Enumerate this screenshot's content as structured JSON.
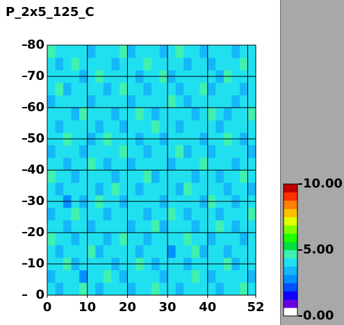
{
  "chart_data": {
    "type": "heatmap",
    "title": "P_2x5_125_C",
    "xlim": [
      0,
      52
    ],
    "ylim": [
      0,
      80
    ],
    "xticks": [
      0,
      10,
      20,
      30,
      40,
      52
    ],
    "yticks": [
      0,
      10,
      20,
      30,
      40,
      50,
      60,
      70,
      80
    ],
    "xgrid": [
      10,
      20,
      30,
      40,
      50
    ],
    "ygrid": [
      10,
      20,
      30,
      40,
      50,
      60,
      70
    ],
    "grid": true,
    "zlim": [
      0,
      10
    ],
    "zticks": [
      {
        "value": 0,
        "label": "0.00"
      },
      {
        "value": 5,
        "label": "5.00"
      },
      {
        "value": 10,
        "label": "10.00"
      }
    ],
    "colorscale": [
      "#ffffff",
      "#6a00e0",
      "#1000ff",
      "#0050ff",
      "#0090ff",
      "#14b8f8",
      "#20e0f0",
      "#40f0b0",
      "#00e040",
      "#20ff00",
      "#80ff00",
      "#e0ff00",
      "#ffc000",
      "#ff8000",
      "#ff3000",
      "#c00000"
    ],
    "z": [
      [
        4,
        3.4,
        4,
        4,
        4.6,
        4,
        3.4,
        4,
        4,
        4,
        3.4,
        4,
        4,
        4.6,
        4,
        4,
        3.4,
        4,
        4,
        4,
        4,
        3.4,
        4,
        4,
        4.6,
        4
      ],
      [
        3.4,
        4,
        4,
        4,
        3,
        4,
        4,
        4.6,
        4,
        3.4,
        4,
        4,
        4,
        4,
        3.4,
        4,
        4,
        4,
        4.6,
        4,
        3.4,
        4,
        4,
        4,
        4,
        3.4
      ],
      [
        4,
        4,
        4.6,
        3.4,
        4,
        4,
        4,
        4,
        3.4,
        4,
        4,
        4.6,
        4,
        3.4,
        4,
        4,
        4,
        3.4,
        4,
        4,
        4,
        4,
        4.6,
        3.4,
        4,
        4
      ],
      [
        4,
        3.4,
        4,
        4,
        4,
        4.6,
        3.4,
        4,
        4,
        4,
        4,
        3.4,
        4,
        4,
        4,
        3,
        4,
        4,
        4.6,
        3.4,
        4,
        4,
        3.4,
        4,
        4,
        4
      ],
      [
        4.6,
        4,
        4,
        3.4,
        4,
        4,
        4,
        3.4,
        4,
        4.6,
        4,
        4,
        3.4,
        4,
        4,
        4,
        4,
        4.6,
        4,
        4,
        3.4,
        4,
        4,
        4,
        3.4,
        4
      ],
      [
        4,
        4,
        3.4,
        4,
        4,
        3.4,
        4,
        4,
        4,
        4,
        3.4,
        4,
        4,
        4.6,
        3.4,
        4,
        4,
        4,
        3.4,
        4,
        4,
        4.6,
        4,
        3.4,
        4,
        4
      ],
      [
        3.4,
        4,
        4,
        4.6,
        4,
        4,
        4,
        3.4,
        4,
        4,
        4,
        4,
        3.4,
        4,
        4,
        4.6,
        4,
        3.4,
        4,
        4,
        4,
        3.4,
        4,
        4,
        4,
        4.6
      ],
      [
        4,
        4,
        3,
        4,
        3.4,
        4,
        4.6,
        4,
        4,
        3.4,
        4,
        4,
        4,
        4,
        3.4,
        4,
        4,
        4,
        4,
        3.4,
        4.6,
        4,
        4,
        3.4,
        4,
        4
      ],
      [
        4,
        3.4,
        4,
        4,
        4,
        4,
        3.4,
        4,
        4.6,
        4,
        4,
        3.4,
        4,
        4,
        4,
        4,
        3.4,
        4.6,
        4,
        4,
        4,
        4,
        3.4,
        4,
        4,
        3.4
      ],
      [
        4.6,
        4,
        4,
        3.4,
        4,
        4,
        4,
        4,
        3.4,
        4,
        4,
        4,
        4.6,
        3.4,
        4,
        4,
        4,
        4,
        3.4,
        4,
        4,
        3.4,
        4,
        4,
        4.6,
        4
      ],
      [
        4,
        4,
        3.4,
        4,
        4,
        4.6,
        4,
        3.4,
        4,
        4,
        3.4,
        4,
        4,
        4,
        4,
        3.4,
        4,
        4,
        4,
        4.6,
        4,
        4,
        4,
        3.4,
        4,
        4
      ],
      [
        3.4,
        4,
        4,
        4,
        3.4,
        4,
        4,
        4,
        4,
        4.6,
        4,
        4,
        3.4,
        4,
        4,
        4,
        4.6,
        3.4,
        4,
        4,
        3.4,
        4,
        4,
        4,
        4,
        3.4
      ],
      [
        4,
        4,
        4.6,
        4,
        4,
        3.4,
        4,
        4.6,
        4,
        4,
        4,
        3.4,
        4,
        4,
        3.4,
        4,
        4,
        4,
        4,
        3.4,
        4,
        4,
        4.6,
        4,
        3.4,
        4
      ],
      [
        4,
        3.4,
        4,
        4,
        4,
        4,
        3.4,
        4,
        4,
        3.4,
        4,
        4,
        4,
        4.6,
        4,
        4,
        3.4,
        4,
        4,
        4,
        4,
        3.4,
        4,
        4,
        4,
        4
      ],
      [
        4,
        4,
        4,
        3.4,
        4.6,
        4,
        4,
        4,
        3.4,
        4,
        4,
        4.6,
        4,
        3.4,
        4,
        4,
        4,
        4,
        3.4,
        4,
        4.6,
        4,
        3.4,
        4,
        4,
        4.6
      ],
      [
        3.4,
        4,
        4,
        4,
        4,
        3.4,
        4,
        4,
        4,
        4,
        3.4,
        4,
        4,
        4,
        4,
        4.6,
        4,
        3.4,
        4,
        4,
        4,
        4,
        4,
        3.4,
        4,
        4
      ],
      [
        4,
        4.6,
        3.4,
        4,
        4,
        4,
        4,
        3.4,
        4,
        4.6,
        4,
        4,
        3.4,
        4,
        4,
        4,
        3.4,
        4,
        4,
        4.6,
        3.4,
        4,
        4,
        4,
        3.4,
        4
      ],
      [
        4,
        4,
        4,
        4,
        3.4,
        4,
        4.6,
        4,
        4,
        4,
        4,
        3.4,
        4,
        4,
        4.6,
        3.4,
        4,
        4,
        4,
        4,
        4,
        3.4,
        4.6,
        4,
        4,
        4
      ],
      [
        4,
        3.4,
        4,
        4.6,
        4,
        4,
        4,
        4,
        3.4,
        4,
        4,
        4,
        4.6,
        4,
        4,
        4,
        4,
        3.4,
        4,
        4,
        3.4,
        4,
        4,
        4,
        4.6,
        4
      ],
      [
        4.6,
        4,
        4,
        4,
        4,
        3.4,
        4,
        4,
        4,
        4.6,
        3.4,
        4,
        4,
        4,
        3.4,
        4,
        4.6,
        4,
        4,
        3.4,
        4,
        4,
        4,
        3.4,
        4,
        4
      ]
    ]
  }
}
